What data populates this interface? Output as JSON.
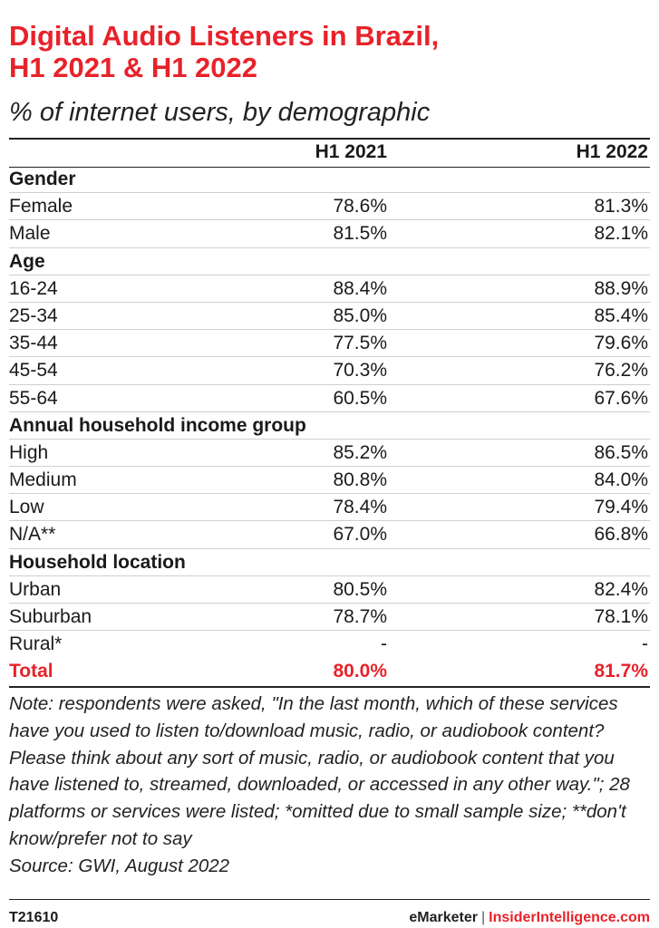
{
  "title_line1": "Digital Audio Listeners in Brazil,",
  "title_line2": "H1 2021 & H1 2022",
  "subtitle": "% of internet users, by demographic",
  "colors": {
    "accent": "#e8222a",
    "text": "#1a1a1a",
    "rule": "#222222",
    "divider": "#cfcfcf"
  },
  "chart_data": {
    "type": "table",
    "columns": [
      "",
      "H1 2021",
      "H1 2022"
    ],
    "rows": [
      {
        "kind": "section",
        "label": "Gender"
      },
      {
        "kind": "data",
        "label": "Female",
        "h1_2021": "78.6%",
        "h1_2022": "81.3%"
      },
      {
        "kind": "data",
        "label": "Male",
        "h1_2021": "81.5%",
        "h1_2022": "82.1%"
      },
      {
        "kind": "section",
        "label": "Age"
      },
      {
        "kind": "data",
        "label": "16-24",
        "h1_2021": "88.4%",
        "h1_2022": "88.9%"
      },
      {
        "kind": "data",
        "label": "25-34",
        "h1_2021": "85.0%",
        "h1_2022": "85.4%"
      },
      {
        "kind": "data",
        "label": "35-44",
        "h1_2021": "77.5%",
        "h1_2022": "79.6%"
      },
      {
        "kind": "data",
        "label": "45-54",
        "h1_2021": "70.3%",
        "h1_2022": "76.2%"
      },
      {
        "kind": "data",
        "label": "55-64",
        "h1_2021": "60.5%",
        "h1_2022": "67.6%"
      },
      {
        "kind": "section",
        "label": "Annual household income group"
      },
      {
        "kind": "data",
        "label": "High",
        "h1_2021": "85.2%",
        "h1_2022": "86.5%"
      },
      {
        "kind": "data",
        "label": "Medium",
        "h1_2021": "80.8%",
        "h1_2022": "84.0%"
      },
      {
        "kind": "data",
        "label": "Low",
        "h1_2021": "78.4%",
        "h1_2022": "79.4%"
      },
      {
        "kind": "data",
        "label": "N/A**",
        "h1_2021": "67.0%",
        "h1_2022": "66.8%"
      },
      {
        "kind": "section",
        "label": "Household location"
      },
      {
        "kind": "data",
        "label": "Urban",
        "h1_2021": "80.5%",
        "h1_2022": "82.4%"
      },
      {
        "kind": "data",
        "label": "Suburban",
        "h1_2021": "78.7%",
        "h1_2022": "78.1%"
      },
      {
        "kind": "data",
        "label": "Rural*",
        "h1_2021": "-",
        "h1_2022": "-"
      },
      {
        "kind": "total",
        "label": "Total",
        "h1_2021": "80.0%",
        "h1_2022": "81.7%"
      }
    ]
  },
  "note": "Note: respondents were asked, \"In the last month, which of these services have you used to listen to/download music, radio, or audiobook content? Please think about any sort of music, radio, or audiobook content that you have listened to, streamed, downloaded, or accessed in any other way.\"; 28 platforms or services were listed; *omitted due to small sample size; **don't know/prefer not to say",
  "source": "Source: GWI, August 2022",
  "footer": {
    "chart_id": "T21610",
    "brand1": "eMarketer",
    "separator": "|",
    "brand2": "InsiderIntelligence.com"
  }
}
